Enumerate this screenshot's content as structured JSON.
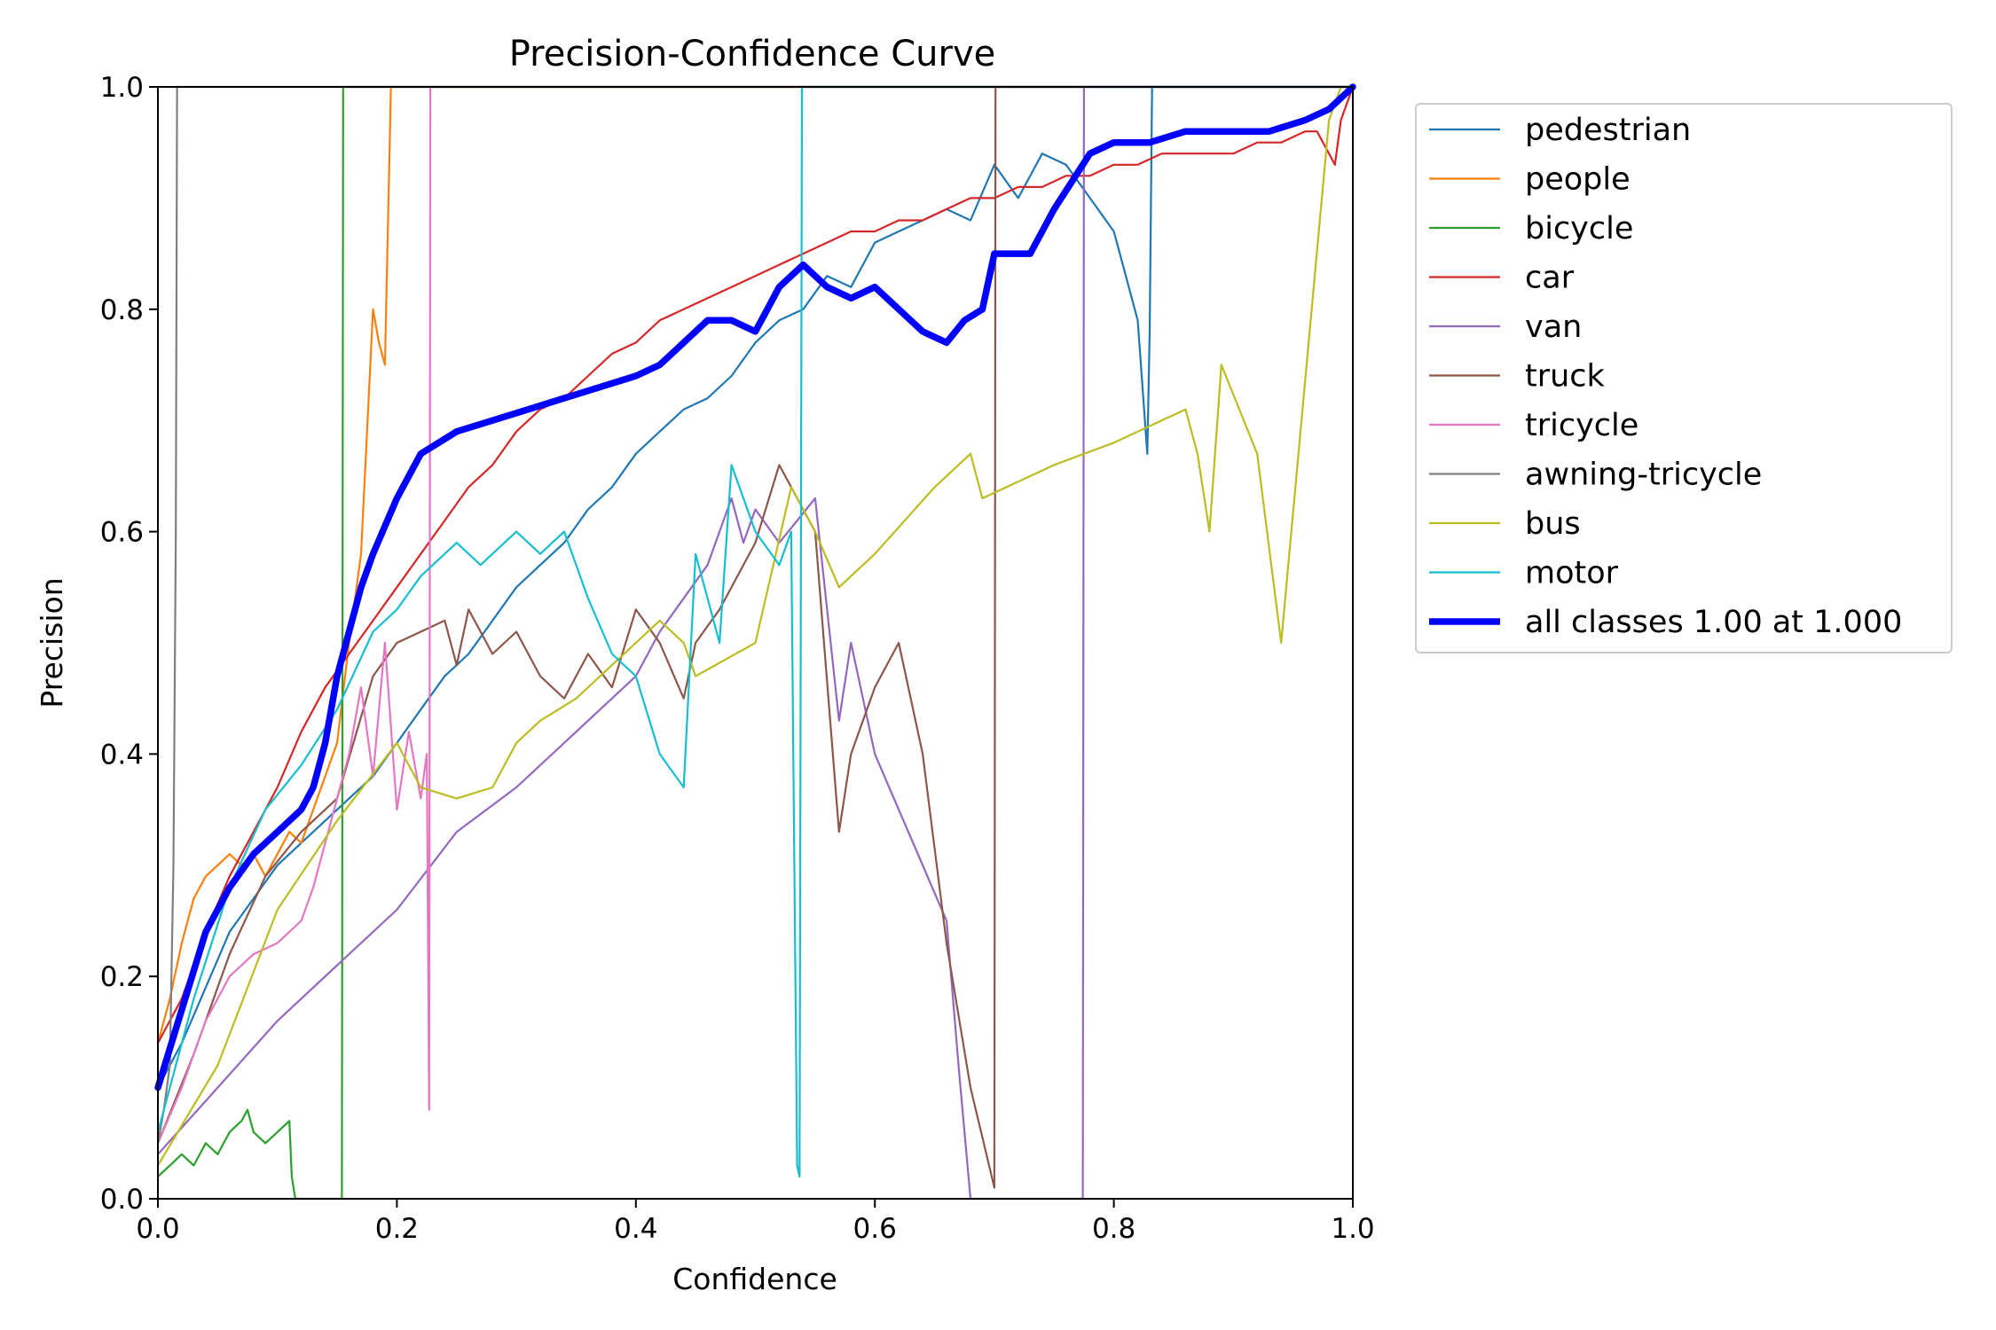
{
  "chart_data": {
    "type": "line",
    "title": "Precision-Confidence Curve",
    "xlabel": "Confidence",
    "ylabel": "Precision",
    "xlim": [
      0.0,
      1.0
    ],
    "ylim": [
      0.0,
      1.0
    ],
    "xticks": [
      "0.0",
      "0.2",
      "0.4",
      "0.6",
      "0.8",
      "1.0"
    ],
    "yticks": [
      "0.0",
      "0.2",
      "0.4",
      "0.6",
      "0.8",
      "1.0"
    ],
    "grid": false,
    "legend_position": "outside upper right",
    "series": [
      {
        "name": "pedestrian",
        "color": "#1f77b4",
        "width": 2.2,
        "x": [
          0.0,
          0.02,
          0.04,
          0.06,
          0.08,
          0.1,
          0.12,
          0.14,
          0.16,
          0.18,
          0.2,
          0.22,
          0.24,
          0.26,
          0.28,
          0.3,
          0.32,
          0.34,
          0.36,
          0.38,
          0.4,
          0.42,
          0.44,
          0.46,
          0.48,
          0.5,
          0.52,
          0.54,
          0.56,
          0.58,
          0.6,
          0.62,
          0.64,
          0.66,
          0.68,
          0.7,
          0.72,
          0.74,
          0.76,
          0.78,
          0.8,
          0.81,
          0.82,
          0.828,
          0.83,
          0.832,
          1.0
        ],
        "y": [
          0.1,
          0.14,
          0.19,
          0.24,
          0.27,
          0.3,
          0.32,
          0.34,
          0.36,
          0.38,
          0.41,
          0.44,
          0.47,
          0.49,
          0.52,
          0.55,
          0.57,
          0.59,
          0.62,
          0.64,
          0.67,
          0.69,
          0.71,
          0.72,
          0.74,
          0.77,
          0.79,
          0.8,
          0.83,
          0.82,
          0.86,
          0.87,
          0.88,
          0.89,
          0.88,
          0.93,
          0.9,
          0.94,
          0.93,
          0.9,
          0.87,
          0.83,
          0.79,
          0.67,
          0.78,
          1.0,
          1.0
        ]
      },
      {
        "name": "people",
        "color": "#ff7f0e",
        "width": 2.2,
        "x": [
          0.0,
          0.01,
          0.02,
          0.03,
          0.04,
          0.05,
          0.06,
          0.07,
          0.08,
          0.09,
          0.1,
          0.11,
          0.12,
          0.13,
          0.14,
          0.15,
          0.16,
          0.17,
          0.18,
          0.185,
          0.19,
          0.195,
          0.2,
          0.21,
          0.22,
          1.0
        ],
        "y": [
          0.14,
          0.18,
          0.23,
          0.27,
          0.29,
          0.3,
          0.31,
          0.3,
          0.31,
          0.29,
          0.31,
          0.33,
          0.32,
          0.35,
          0.38,
          0.41,
          0.5,
          0.58,
          0.8,
          0.77,
          0.75,
          1.0,
          1.0,
          1.0,
          1.0,
          1.0
        ]
      },
      {
        "name": "bicycle",
        "color": "#2ca02c",
        "width": 2.2,
        "x": [
          0.0,
          0.01,
          0.02,
          0.03,
          0.04,
          0.05,
          0.06,
          0.07,
          0.075,
          0.08,
          0.09,
          0.1,
          0.11,
          0.112,
          0.115,
          0.154,
          0.155,
          0.158,
          1.0
        ],
        "y": [
          0.02,
          0.03,
          0.04,
          0.03,
          0.05,
          0.04,
          0.06,
          0.07,
          0.08,
          0.06,
          0.05,
          0.06,
          0.07,
          0.02,
          0.0,
          0.0,
          1.0,
          1.0,
          1.0
        ]
      },
      {
        "name": "car",
        "color": "#d62728",
        "width": 2.2,
        "x": [
          0.0,
          0.02,
          0.04,
          0.06,
          0.08,
          0.1,
          0.12,
          0.14,
          0.16,
          0.18,
          0.2,
          0.22,
          0.24,
          0.26,
          0.28,
          0.3,
          0.32,
          0.34,
          0.36,
          0.38,
          0.4,
          0.42,
          0.44,
          0.46,
          0.48,
          0.5,
          0.52,
          0.54,
          0.56,
          0.58,
          0.6,
          0.62,
          0.64,
          0.66,
          0.68,
          0.7,
          0.72,
          0.74,
          0.76,
          0.78,
          0.8,
          0.82,
          0.84,
          0.86,
          0.88,
          0.9,
          0.92,
          0.94,
          0.96,
          0.97,
          0.98,
          0.985,
          0.99,
          1.0
        ],
        "y": [
          0.14,
          0.18,
          0.24,
          0.29,
          0.33,
          0.37,
          0.42,
          0.46,
          0.49,
          0.52,
          0.55,
          0.58,
          0.61,
          0.64,
          0.66,
          0.69,
          0.71,
          0.72,
          0.74,
          0.76,
          0.77,
          0.79,
          0.8,
          0.81,
          0.82,
          0.83,
          0.84,
          0.85,
          0.86,
          0.87,
          0.87,
          0.88,
          0.88,
          0.89,
          0.9,
          0.9,
          0.91,
          0.91,
          0.92,
          0.92,
          0.93,
          0.93,
          0.94,
          0.94,
          0.94,
          0.94,
          0.95,
          0.95,
          0.96,
          0.96,
          0.94,
          0.93,
          0.97,
          1.0
        ]
      },
      {
        "name": "van",
        "color": "#9467bd",
        "width": 2.2,
        "x": [
          0.0,
          0.05,
          0.1,
          0.15,
          0.2,
          0.25,
          0.3,
          0.35,
          0.4,
          0.42,
          0.44,
          0.46,
          0.48,
          0.49,
          0.5,
          0.52,
          0.55,
          0.57,
          0.58,
          0.6,
          0.62,
          0.64,
          0.66,
          0.67,
          0.68,
          0.7,
          0.72,
          0.75,
          0.774,
          0.775,
          1.0
        ],
        "y": [
          0.04,
          0.1,
          0.16,
          0.21,
          0.26,
          0.33,
          0.37,
          0.42,
          0.47,
          0.51,
          0.54,
          0.57,
          0.63,
          0.59,
          0.62,
          0.59,
          0.63,
          0.43,
          0.5,
          0.4,
          0.35,
          0.3,
          0.25,
          0.12,
          0.0,
          0.0,
          0.0,
          0.0,
          0.0,
          1.0,
          1.0
        ]
      },
      {
        "name": "truck",
        "color": "#8c564b",
        "width": 2.2,
        "x": [
          0.0,
          0.03,
          0.06,
          0.09,
          0.12,
          0.15,
          0.18,
          0.2,
          0.22,
          0.24,
          0.25,
          0.26,
          0.28,
          0.3,
          0.32,
          0.34,
          0.36,
          0.38,
          0.4,
          0.42,
          0.44,
          0.45,
          0.47,
          0.5,
          0.52,
          0.55,
          0.57,
          0.58,
          0.6,
          0.62,
          0.64,
          0.66,
          0.68,
          0.7,
          0.701,
          1.0
        ],
        "y": [
          0.05,
          0.13,
          0.22,
          0.29,
          0.33,
          0.36,
          0.47,
          0.5,
          0.51,
          0.52,
          0.48,
          0.53,
          0.49,
          0.51,
          0.47,
          0.45,
          0.49,
          0.46,
          0.53,
          0.5,
          0.45,
          0.5,
          0.53,
          0.59,
          0.66,
          0.6,
          0.33,
          0.4,
          0.46,
          0.5,
          0.4,
          0.23,
          0.1,
          0.01,
          1.0,
          1.0
        ]
      },
      {
        "name": "tricycle",
        "color": "#e377c2",
        "width": 2.2,
        "x": [
          0.0,
          0.02,
          0.04,
          0.06,
          0.08,
          0.1,
          0.12,
          0.13,
          0.14,
          0.15,
          0.16,
          0.17,
          0.18,
          0.19,
          0.2,
          0.21,
          0.22,
          0.225,
          0.227,
          0.228,
          0.23,
          1.0
        ],
        "y": [
          0.05,
          0.1,
          0.16,
          0.2,
          0.22,
          0.23,
          0.25,
          0.28,
          0.32,
          0.36,
          0.4,
          0.46,
          0.38,
          0.5,
          0.35,
          0.42,
          0.36,
          0.4,
          0.08,
          1.0,
          1.0,
          1.0
        ]
      },
      {
        "name": "awning-tricycle",
        "color": "#7f7f7f",
        "width": 2.2,
        "x": [
          0.0,
          0.005,
          0.01,
          0.013,
          0.015,
          0.016,
          0.02,
          1.0
        ],
        "y": [
          0.05,
          0.08,
          0.12,
          0.3,
          0.6,
          1.0,
          1.0,
          1.0
        ]
      },
      {
        "name": "bus",
        "color": "#bcbd22",
        "width": 2.2,
        "x": [
          0.0,
          0.05,
          0.1,
          0.15,
          0.2,
          0.22,
          0.25,
          0.28,
          0.3,
          0.32,
          0.35,
          0.38,
          0.4,
          0.42,
          0.44,
          0.45,
          0.5,
          0.53,
          0.55,
          0.57,
          0.6,
          0.65,
          0.68,
          0.69,
          0.75,
          0.8,
          0.86,
          0.87,
          0.88,
          0.89,
          0.92,
          0.94,
          0.98,
          0.99,
          1.0
        ],
        "y": [
          0.03,
          0.12,
          0.26,
          0.34,
          0.41,
          0.37,
          0.36,
          0.37,
          0.41,
          0.43,
          0.45,
          0.48,
          0.5,
          0.52,
          0.5,
          0.47,
          0.5,
          0.64,
          0.6,
          0.55,
          0.58,
          0.64,
          0.67,
          0.63,
          0.66,
          0.68,
          0.71,
          0.67,
          0.6,
          0.75,
          0.67,
          0.5,
          0.97,
          1.0,
          1.0
        ]
      },
      {
        "name": "motor",
        "color": "#17becf",
        "width": 2.2,
        "x": [
          0.0,
          0.03,
          0.06,
          0.09,
          0.12,
          0.15,
          0.18,
          0.2,
          0.22,
          0.24,
          0.25,
          0.27,
          0.3,
          0.32,
          0.34,
          0.36,
          0.38,
          0.4,
          0.42,
          0.44,
          0.45,
          0.47,
          0.48,
          0.5,
          0.52,
          0.53,
          0.535,
          0.537,
          0.539,
          0.54,
          1.0
        ],
        "y": [
          0.06,
          0.18,
          0.28,
          0.35,
          0.39,
          0.44,
          0.51,
          0.53,
          0.56,
          0.58,
          0.59,
          0.57,
          0.6,
          0.58,
          0.6,
          0.54,
          0.49,
          0.47,
          0.4,
          0.37,
          0.58,
          0.5,
          0.66,
          0.6,
          0.57,
          0.6,
          0.03,
          0.02,
          1.0,
          1.0,
          1.0
        ]
      },
      {
        "name": "all classes 1.00 at 1.000",
        "color": "#0000ff",
        "width": 7.5,
        "x": [
          0.0,
          0.02,
          0.04,
          0.06,
          0.08,
          0.1,
          0.12,
          0.13,
          0.14,
          0.15,
          0.16,
          0.17,
          0.18,
          0.2,
          0.22,
          0.25,
          0.28,
          0.31,
          0.34,
          0.37,
          0.4,
          0.42,
          0.44,
          0.46,
          0.48,
          0.5,
          0.51,
          0.52,
          0.54,
          0.56,
          0.58,
          0.6,
          0.62,
          0.64,
          0.66,
          0.675,
          0.69,
          0.7,
          0.73,
          0.75,
          0.78,
          0.8,
          0.83,
          0.86,
          0.9,
          0.93,
          0.96,
          0.98,
          1.0
        ],
        "y": [
          0.1,
          0.17,
          0.24,
          0.28,
          0.31,
          0.33,
          0.35,
          0.37,
          0.41,
          0.47,
          0.51,
          0.55,
          0.58,
          0.63,
          0.67,
          0.69,
          0.7,
          0.71,
          0.72,
          0.73,
          0.74,
          0.75,
          0.77,
          0.79,
          0.79,
          0.78,
          0.8,
          0.82,
          0.84,
          0.82,
          0.81,
          0.82,
          0.8,
          0.78,
          0.77,
          0.79,
          0.8,
          0.85,
          0.85,
          0.89,
          0.94,
          0.95,
          0.95,
          0.96,
          0.96,
          0.96,
          0.97,
          0.98,
          1.0
        ]
      }
    ]
  }
}
